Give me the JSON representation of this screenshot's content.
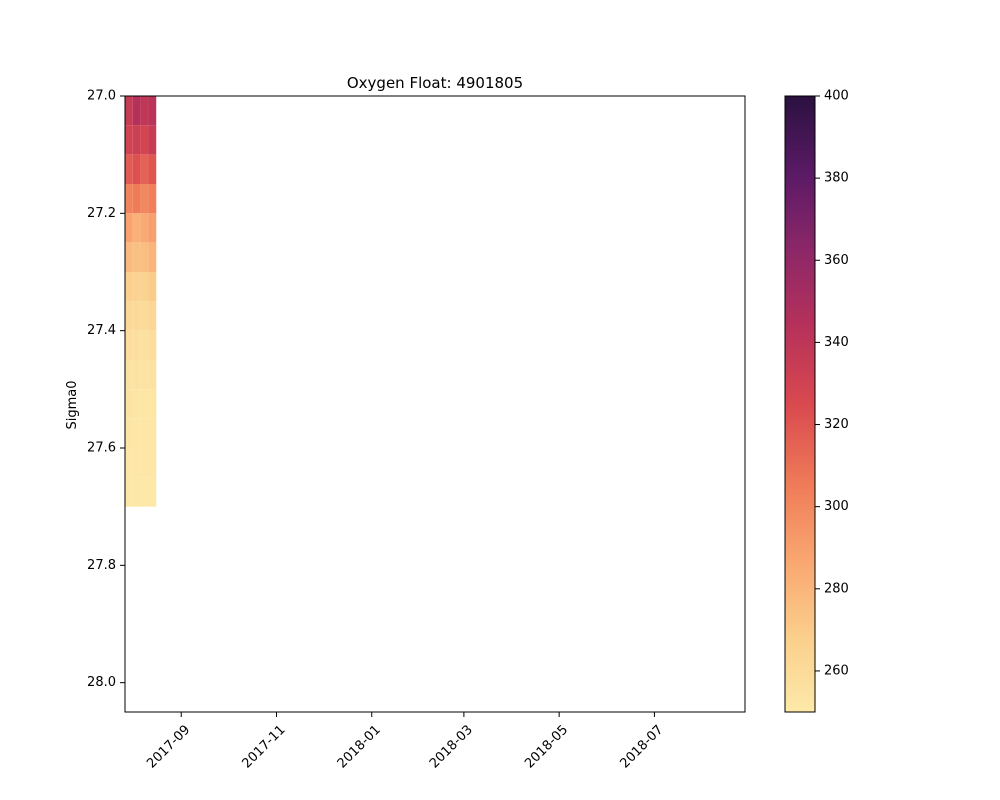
{
  "chart_data": {
    "type": "heatmap",
    "title": "Oxygen Float: 4901805",
    "xlabel": "",
    "ylabel": "Sigma0",
    "x_ticks": [
      "2017-09",
      "2017-11",
      "2018-01",
      "2018-03",
      "2018-05",
      "2018-07"
    ],
    "xlim": [
      "2017-07-27",
      "2018-08-28"
    ],
    "y_ticks": [
      "27.0",
      "27.2",
      "27.4",
      "27.6",
      "27.8",
      "28.0"
    ],
    "ylim": [
      27.0,
      28.05
    ],
    "y_inverted": true,
    "colorbar": {
      "colormap": "magma_r",
      "range": [
        250,
        400
      ],
      "ticks": [
        "260",
        "280",
        "300",
        "320",
        "340",
        "360",
        "380",
        "400"
      ]
    },
    "profiles": [
      {
        "date": "2017-07-27",
        "oxygen": [
          335,
          330,
          318,
          302,
          288,
          278,
          268,
          262,
          258,
          255,
          254,
          253,
          252,
          252
        ]
      },
      {
        "date": "2017-08-01",
        "oxygen": [
          345,
          332,
          322,
          305,
          282,
          275,
          266,
          261,
          257,
          255,
          253,
          252,
          252,
          252
        ]
      },
      {
        "date": "2017-08-06",
        "oxygen": [
          338,
          328,
          315,
          300,
          285,
          276,
          265,
          260,
          256,
          254,
          253,
          252,
          252,
          251
        ]
      },
      {
        "date": "2017-08-11",
        "oxygen": [
          342,
          335,
          320,
          304,
          290,
          280,
          270,
          263,
          258,
          255,
          253,
          252,
          252,
          251
        ]
      }
    ],
    "sigma_bins": [
      27.0,
      27.05,
      27.1,
      27.15,
      27.2,
      27.25,
      27.3,
      27.35,
      27.4,
      27.45,
      27.5,
      27.55,
      27.6,
      27.65,
      27.7
    ]
  }
}
